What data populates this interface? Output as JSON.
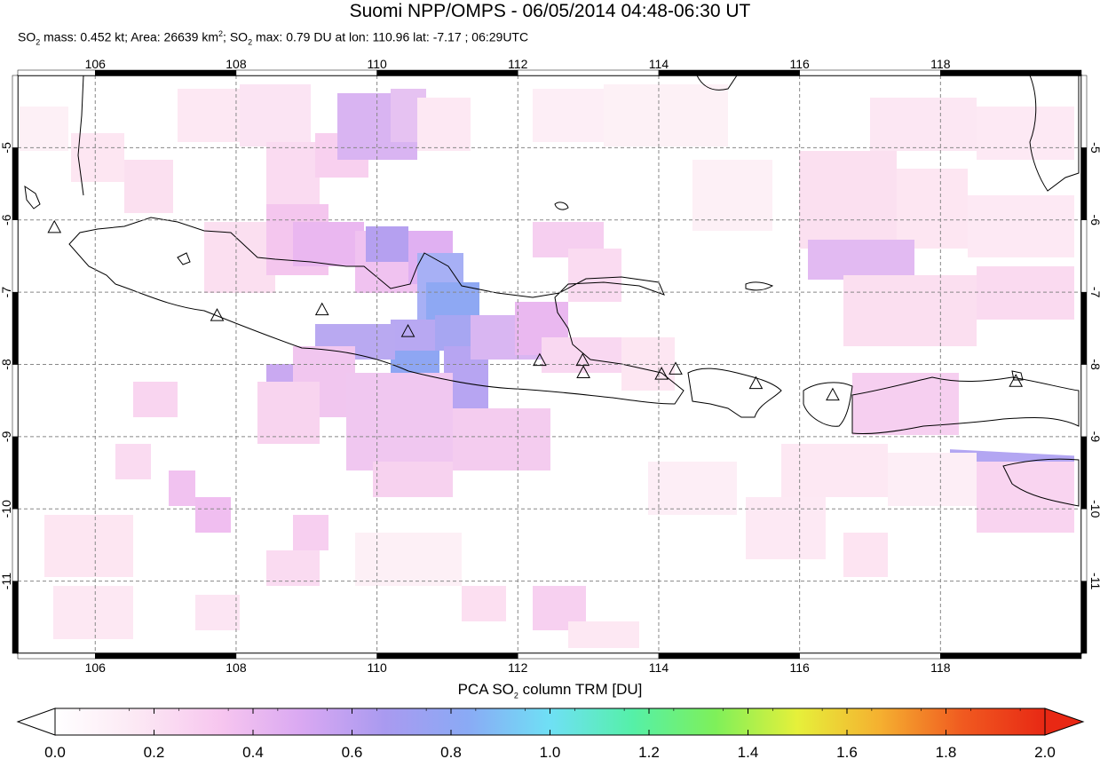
{
  "header": {
    "title": "Suomi NPP/OMPS - 06/05/2014 04:48-06:30 UT",
    "stats": {
      "mass_prefix": "SO",
      "mass_sub": "2",
      "mass_text": " mass: 0.452 kt; Area: 26639 km",
      "area_sup": "2",
      "max_prefix": "; SO",
      "max_sub": "2",
      "max_text": " max: 0.79 DU at lon: 110.96 lat: -7.17 ; 06:29UTC"
    }
  },
  "map": {
    "lon_range": [
      104.9,
      120.0
    ],
    "lat_range": [
      -12.0,
      -4.0
    ],
    "lon_ticks": [
      "106",
      "108",
      "110",
      "112",
      "114",
      "116",
      "118"
    ],
    "lat_ticks": [
      "-5",
      "-6",
      "-7",
      "-8",
      "-9",
      "-10",
      "-11"
    ],
    "grid": "dashed",
    "volcanoes": [
      {
        "lon": 105.42,
        "lat": -6.1
      },
      {
        "lon": 107.73,
        "lat": -7.32
      },
      {
        "lon": 109.22,
        "lat": -7.24
      },
      {
        "lon": 110.44,
        "lat": -7.54
      },
      {
        "lon": 112.31,
        "lat": -7.94
      },
      {
        "lon": 112.92,
        "lat": -7.94
      },
      {
        "lon": 112.93,
        "lat": -8.11
      },
      {
        "lon": 114.04,
        "lat": -8.13
      },
      {
        "lon": 114.24,
        "lat": -8.06
      },
      {
        "lon": 115.38,
        "lat": -8.26
      },
      {
        "lon": 116.47,
        "lat": -8.42
      },
      {
        "lon": 119.07,
        "lat": -8.23
      }
    ]
  },
  "colorbar": {
    "label_prefix": "PCA SO",
    "label_sub": "2",
    "label_suffix": " column TRM [DU]",
    "ticks": [
      "0.0",
      "0.2",
      "0.4",
      "0.6",
      "0.8",
      "1.0",
      "1.2",
      "1.4",
      "1.6",
      "1.8",
      "2.0"
    ],
    "range": [
      0.0,
      2.0
    ],
    "colors": [
      "#ffffff",
      "#fce8f4",
      "#f7c6ef",
      "#d9a8f2",
      "#a99af0",
      "#8aaaf5",
      "#6fe0f5",
      "#55f0a8",
      "#7ef05a",
      "#e6f03a",
      "#f5b030",
      "#f05a20",
      "#e82814"
    ]
  }
}
